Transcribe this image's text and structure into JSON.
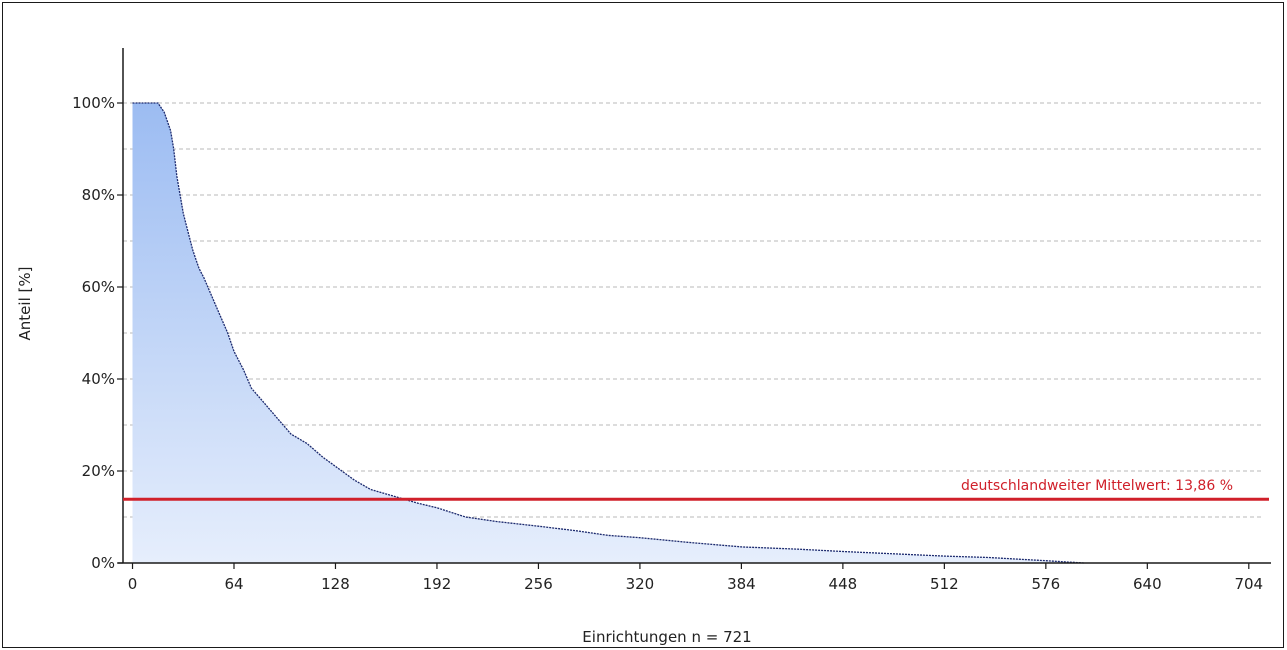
{
  "chart_data": {
    "type": "area",
    "title": "",
    "xlabel": "Einrichtungen n = 721",
    "ylabel": "Anteil [%]",
    "xlim": [
      -6,
      718
    ],
    "ylim": [
      0,
      110
    ],
    "x_ticks": [
      0,
      64,
      128,
      192,
      256,
      320,
      384,
      448,
      512,
      576,
      640,
      704
    ],
    "x_tick_labels": [
      "0",
      "64",
      "128",
      "192",
      "256",
      "320",
      "384",
      "448",
      "512",
      "576",
      "640",
      "704"
    ],
    "y_ticks": [
      0,
      20,
      40,
      60,
      80,
      100
    ],
    "y_tick_labels": [
      "0%",
      "20%",
      "40%",
      "60%",
      "80%",
      "100%"
    ],
    "grid": "horizontal dashed every 10%",
    "series": [
      {
        "x": [
          0,
          5,
          10,
          16,
          20,
          24,
          26,
          28,
          30,
          32,
          35,
          38,
          40,
          42,
          45,
          50,
          55,
          60,
          64,
          70,
          75,
          80,
          90,
          100,
          110,
          120,
          128,
          140,
          150,
          160,
          170,
          180,
          192,
          210,
          230,
          256,
          280,
          300,
          320,
          350,
          384,
          420,
          448,
          480,
          512,
          540,
          560,
          576,
          600
        ],
        "y": [
          100,
          100,
          100,
          100,
          98,
          94,
          90,
          84,
          80,
          76,
          72,
          68,
          66,
          64,
          62,
          58,
          54,
          50,
          46,
          42,
          38,
          36,
          32,
          28,
          26,
          23,
          21,
          18,
          16,
          15,
          14,
          13,
          12,
          10,
          9,
          8,
          7,
          6,
          5.5,
          4.5,
          3.5,
          3,
          2.5,
          2,
          1.5,
          1.2,
          0.8,
          0.5,
          0
        ]
      }
    ],
    "reference_line": {
      "value": 13.86,
      "label": "deutschlandweiter Mittelwert: 13,86 %",
      "color": "#d0202a"
    },
    "colors": {
      "area_top": "#9cbcf2",
      "area_bottom": "#e6eefc",
      "area_outline": "#1c2a6e",
      "axis": "#1a1a1a",
      "grid": "#b8b8b8"
    }
  }
}
